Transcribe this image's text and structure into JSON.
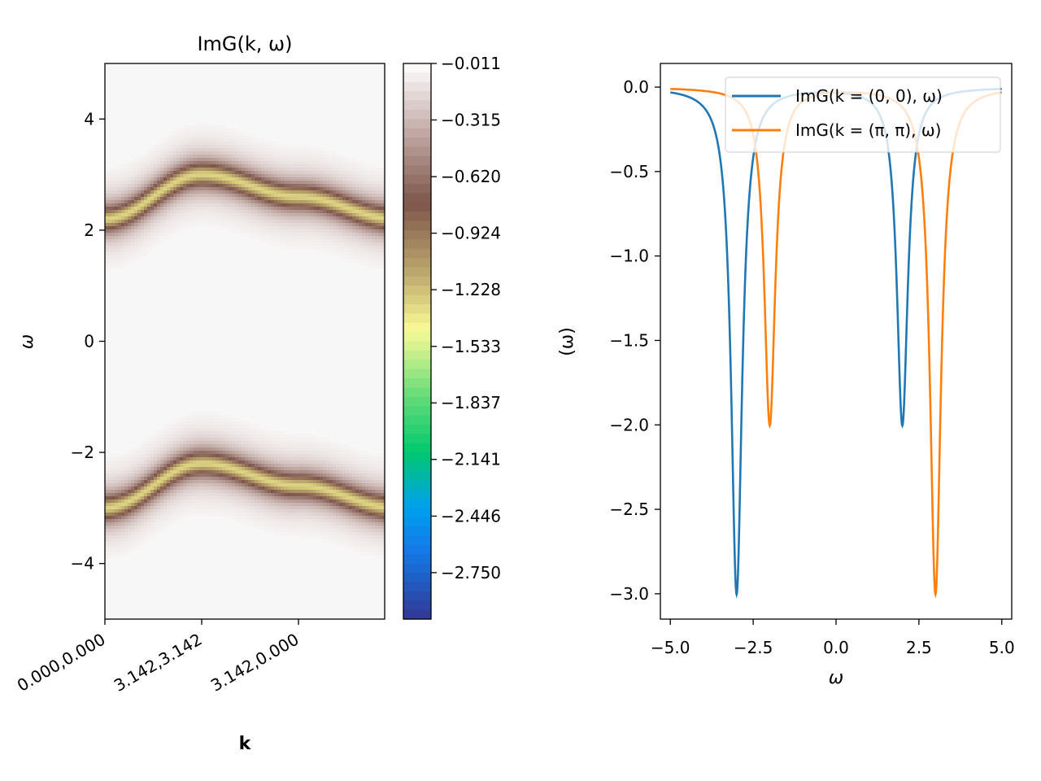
{
  "chart_data": [
    {
      "type": "heatmap",
      "title": "ImG(k, ω)",
      "xlabel": "k",
      "ylabel": "ω",
      "x_ticks": [
        "0.000,0.000",
        "3.142,3.142",
        "3.142,0.000"
      ],
      "y_ticks": [
        "4",
        "2",
        "0",
        "−2",
        "−4"
      ],
      "ylim": [
        -5,
        5
      ],
      "colormap": "terrain",
      "colorbar_range": [
        -3.0,
        -0.011
      ],
      "colorbar_ticks": [
        "−0.011",
        "−0.315",
        "−0.620",
        "−0.924",
        "−1.228",
        "−1.533",
        "−1.837",
        "−2.141",
        "−2.446",
        "−2.750"
      ],
      "bands": [
        {
          "name": "upper",
          "center_at_ticks": [
            2.2,
            3.0,
            2.6,
            2.2
          ]
        },
        {
          "name": "lower",
          "center_at_ticks": [
            -3.0,
            -2.2,
            -2.6,
            -3.0
          ]
        }
      ]
    },
    {
      "type": "line",
      "title": "",
      "xlabel": "ω",
      "ylabel": "(ω)",
      "xlim": [
        -5.3,
        5.3
      ],
      "ylim": [
        -3.15,
        0.14
      ],
      "x_ticks": [
        "−5.0",
        "−2.5",
        "0.0",
        "2.5",
        "5.0"
      ],
      "y_ticks": [
        "0.0",
        "−0.5",
        "−1.0",
        "−1.5",
        "−2.0",
        "−2.5",
        "−3.0"
      ],
      "legend_position": "top-right",
      "series": [
        {
          "name": "ImG(k = (0, 0), ω)",
          "color": "#1f77b4",
          "peaks": [
            {
              "omega": -3.0,
              "value": -3.0
            },
            {
              "omega": 2.0,
              "value": -2.0
            }
          ]
        },
        {
          "name": "ImG(k = (π, π), ω)",
          "color": "#ff7f0e",
          "peaks": [
            {
              "omega": -2.0,
              "value": -2.0
            },
            {
              "omega": 3.0,
              "value": -3.0
            }
          ]
        }
      ]
    }
  ]
}
